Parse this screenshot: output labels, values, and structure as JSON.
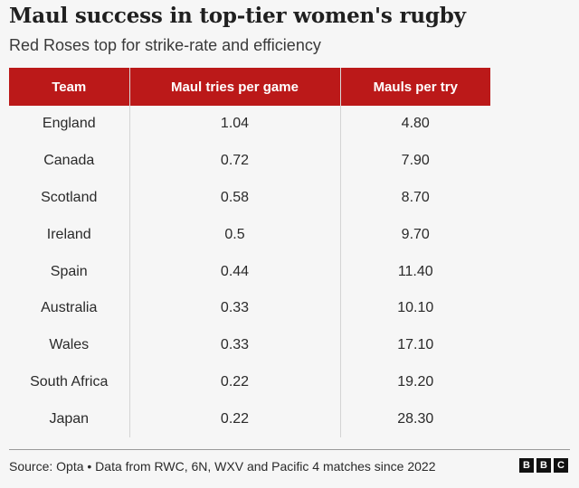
{
  "chart_data": {
    "type": "table",
    "title": "Maul success in top-tier women's rugby",
    "subtitle": "Red Roses top for strike-rate and efficiency",
    "columns": [
      "Team",
      "Maul tries per game",
      "Mauls per try"
    ],
    "rows": [
      [
        "England",
        "1.04",
        "4.80"
      ],
      [
        "Canada",
        "0.72",
        "7.90"
      ],
      [
        "Scotland",
        "0.58",
        "8.70"
      ],
      [
        "Ireland",
        "0.5",
        "9.70"
      ],
      [
        "Spain",
        "0.44",
        "11.40"
      ],
      [
        "Australia",
        "0.33",
        "10.10"
      ],
      [
        "Wales",
        "0.33",
        "17.10"
      ],
      [
        "South Africa",
        "0.22",
        "19.20"
      ],
      [
        "Japan",
        "0.22",
        "28.30"
      ]
    ],
    "header_color": "#bb1919",
    "source": "Source: Opta • Data from RWC, 6N, WXV and Pacific 4 matches since 2022"
  },
  "logo": {
    "letters": [
      "B",
      "B",
      "C"
    ]
  }
}
